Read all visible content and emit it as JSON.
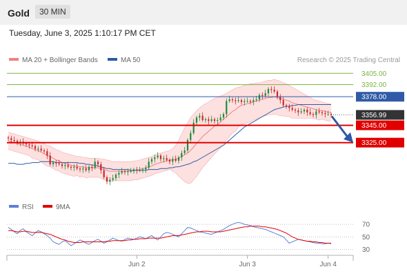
{
  "header": {
    "asset": "Gold",
    "timeframe": "30 MIN",
    "datetime": "Tuesday, June 3, 2025 1:10:17 PM CET"
  },
  "legend": {
    "ma20_label": "MA 20 + Bollinger Bands",
    "ma50_label": "MA 50",
    "attribution": "Research © 2025 Trading Central",
    "rsi_label": "RSI",
    "rsi_ma_label": "9MA"
  },
  "colors": {
    "ma20": "#f08080",
    "bands_fill": "#fcd6d6",
    "ma50": "#2e5aa6",
    "up_candle": "#1f8a3a",
    "down_candle": "#c62828",
    "resistance": "#7cb342",
    "pivot": "#2e5aa6",
    "support": "#e00000",
    "current_price_tag": "#333333",
    "arrow": "#2e5aa6",
    "rsi": "#5b7fd6",
    "rsi_ma": "#e00000"
  },
  "chart_data": [
    {
      "type": "candlestick",
      "title": "Gold",
      "ylim": [
        3265,
        3410
      ],
      "x_tick_labels": [
        "Jun 2",
        "Jun 3",
        "Jun 4"
      ],
      "price_levels": [
        {
          "label": "3405.00",
          "value": 3405.0,
          "role": "resistance"
        },
        {
          "label": "3392.00",
          "value": 3392.0,
          "role": "resistance"
        },
        {
          "label": "3378.00",
          "value": 3378.0,
          "role": "pivot"
        },
        {
          "label": "3345.00",
          "value": 3345.0,
          "role": "support"
        },
        {
          "label": "3325.00",
          "value": 3325.0,
          "role": "support"
        }
      ],
      "current_price": {
        "label": "3356.99",
        "value": 3356.99
      },
      "forecast_arrow": {
        "from": 3356.99,
        "to": 3325.0,
        "direction": "down"
      },
      "closes": [
        3330,
        3328,
        3327,
        3325,
        3326,
        3324,
        3323,
        3322,
        3321,
        3318,
        3318,
        3316,
        3315,
        3310,
        3300,
        3302,
        3301,
        3300,
        3298,
        3299,
        3297,
        3296,
        3297,
        3295,
        3294,
        3295,
        3293,
        3297,
        3296,
        3303,
        3300,
        3293,
        3285,
        3280,
        3282,
        3284,
        3288,
        3290,
        3292,
        3291,
        3292,
        3292,
        3294,
        3293,
        3293,
        3294,
        3296,
        3303,
        3306,
        3308,
        3310,
        3306,
        3307,
        3305,
        3303,
        3306,
        3304,
        3308,
        3313,
        3316,
        3328,
        3336,
        3348,
        3354,
        3356,
        3351,
        3352,
        3350,
        3352,
        3350,
        3351,
        3354,
        3358,
        3373,
        3375,
        3374,
        3373,
        3374,
        3372,
        3373,
        3373,
        3372,
        3374,
        3375,
        3380,
        3379,
        3382,
        3387,
        3386,
        3384,
        3378,
        3374,
        3368,
        3367,
        3365,
        3363,
        3362,
        3360,
        3361,
        3363,
        3360,
        3358,
        3357,
        3361,
        3360,
        3359,
        3358,
        3358,
        3357
      ],
      "ma20": [
        3327,
        3326,
        3325,
        3324,
        3323,
        3322,
        3321,
        3320,
        3318,
        3317,
        3316,
        3314,
        3312,
        3310,
        3309,
        3307,
        3305,
        3304,
        3302,
        3301,
        3300,
        3299,
        3298,
        3298,
        3297,
        3297,
        3296,
        3296,
        3296,
        3296,
        3296,
        3295,
        3294,
        3293,
        3292,
        3292,
        3292,
        3292,
        3292,
        3292,
        3292,
        3292,
        3293,
        3293,
        3294,
        3295,
        3296,
        3297,
        3298,
        3300,
        3301,
        3302,
        3303,
        3304,
        3305,
        3305,
        3306,
        3307,
        3309,
        3311,
        3313,
        3316,
        3320,
        3324,
        3328,
        3332,
        3335,
        3338,
        3341,
        3344,
        3346,
        3349,
        3352,
        3355,
        3358,
        3361,
        3363,
        3366,
        3368,
        3369,
        3370,
        3371,
        3372,
        3373,
        3374,
        3375,
        3376,
        3377,
        3377,
        3378,
        3377,
        3376,
        3375,
        3374,
        3373,
        3371,
        3370,
        3369,
        3368,
        3367,
        3366,
        3365,
        3364,
        3363,
        3362,
        3362,
        3361,
        3360,
        3360
      ],
      "bb_upper": [
        3337,
        3336,
        3335,
        3334,
        3333,
        3332,
        3331,
        3330,
        3329,
        3328,
        3327,
        3325,
        3324,
        3322,
        3321,
        3319,
        3317,
        3316,
        3314,
        3313,
        3312,
        3311,
        3310,
        3309,
        3309,
        3308,
        3308,
        3307,
        3307,
        3307,
        3307,
        3306,
        3306,
        3305,
        3304,
        3303,
        3303,
        3303,
        3303,
        3303,
        3303,
        3303,
        3304,
        3304,
        3305,
        3306,
        3307,
        3308,
        3309,
        3311,
        3312,
        3313,
        3314,
        3315,
        3316,
        3318,
        3322,
        3328,
        3335,
        3342,
        3348,
        3354,
        3358,
        3362,
        3365,
        3368,
        3370,
        3372,
        3374,
        3376,
        3377,
        3379,
        3380,
        3382,
        3384,
        3386,
        3388,
        3389,
        3390,
        3391,
        3392,
        3393,
        3393,
        3394,
        3394,
        3395,
        3396,
        3397,
        3397,
        3398,
        3397,
        3396,
        3394,
        3393,
        3391,
        3389,
        3387,
        3385,
        3383,
        3381,
        3379,
        3377,
        3375,
        3374,
        3373,
        3372,
        3371,
        3370,
        3370
      ],
      "bb_lower": [
        3317,
        3316,
        3315,
        3314,
        3313,
        3312,
        3311,
        3310,
        3307,
        3306,
        3305,
        3303,
        3300,
        3298,
        3297,
        3295,
        3293,
        3292,
        3290,
        3289,
        3288,
        3287,
        3286,
        3287,
        3285,
        3286,
        3284,
        3285,
        3285,
        3285,
        3285,
        3284,
        3282,
        3281,
        3280,
        3281,
        3281,
        3281,
        3281,
        3281,
        3281,
        3281,
        3282,
        3282,
        3283,
        3284,
        3285,
        3286,
        3287,
        3289,
        3290,
        3291,
        3292,
        3293,
        3294,
        3292,
        3290,
        3286,
        3283,
        3280,
        3278,
        3278,
        3282,
        3286,
        3291,
        3296,
        3300,
        3304,
        3308,
        3312,
        3315,
        3319,
        3324,
        3328,
        3332,
        3336,
        3338,
        3343,
        3346,
        3347,
        3348,
        3349,
        3351,
        3352,
        3354,
        3355,
        3356,
        3357,
        3357,
        3358,
        3357,
        3356,
        3356,
        3355,
        3355,
        3353,
        3353,
        3353,
        3353,
        3353,
        3353,
        3353,
        3353,
        3352,
        3351,
        3352,
        3351,
        3350,
        3350
      ],
      "ma50": [
        3301,
        3301,
        3301,
        3300,
        3300,
        3300,
        3301,
        3301,
        3302,
        3302,
        3302,
        3303,
        3303,
        3303,
        3303,
        3303,
        3302,
        3302,
        3302,
        3302,
        3302,
        3302,
        3302,
        3302,
        3301,
        3301,
        3300,
        3300,
        3299,
        3299,
        3298,
        3297,
        3296,
        3295,
        3295,
        3294,
        3294,
        3294,
        3294,
        3294,
        3294,
        3293,
        3293,
        3293,
        3293,
        3293,
        3293,
        3294,
        3294,
        3294,
        3294,
        3295,
        3295,
        3295,
        3296,
        3296,
        3297,
        3297,
        3298,
        3299,
        3300,
        3301,
        3303,
        3304,
        3306,
        3308,
        3310,
        3312,
        3314,
        3316,
        3318,
        3320,
        3322,
        3325,
        3328,
        3331,
        3334,
        3337,
        3340,
        3343,
        3345,
        3347,
        3349,
        3351,
        3353,
        3355,
        3357,
        3359,
        3361,
        3363,
        3364,
        3365,
        3366,
        3367,
        3367,
        3368,
        3368,
        3369,
        3369,
        3369,
        3369,
        3369,
        3369,
        3369,
        3369,
        3369,
        3369,
        3369,
        3369
      ]
    },
    {
      "type": "line",
      "title": "RSI",
      "ylim": [
        25,
        80
      ],
      "y_tick_labels": [
        "70",
        "50",
        "30"
      ],
      "series": [
        {
          "name": "RSI",
          "values": [
            65,
            62,
            58,
            55,
            60,
            63,
            58,
            55,
            52,
            56,
            60,
            58,
            55,
            52,
            48,
            42,
            40,
            38,
            42,
            44,
            40,
            36,
            39,
            42,
            45,
            43,
            40,
            38,
            41,
            44,
            46,
            43,
            40,
            42,
            45,
            48,
            46,
            44,
            43,
            46,
            48,
            47,
            46,
            48,
            50,
            49,
            47,
            50,
            52,
            48,
            45,
            50,
            55,
            57,
            56,
            54,
            52,
            50,
            55,
            60,
            65,
            64,
            62,
            60,
            58,
            57,
            56,
            55,
            54,
            56,
            58,
            60,
            62,
            65,
            68,
            70,
            72,
            73,
            72,
            70,
            69,
            68,
            66,
            65,
            64,
            63,
            62,
            60,
            58,
            56,
            54,
            52,
            50,
            45,
            40,
            42,
            44,
            46,
            45,
            44,
            43,
            42,
            41,
            40,
            40,
            39,
            39,
            40,
            39
          ]
        },
        {
          "name": "9MA",
          "values": [
            60,
            60,
            59,
            58,
            58,
            59,
            59,
            58,
            57,
            57,
            57,
            57,
            56,
            55,
            54,
            52,
            50,
            48,
            46,
            45,
            43,
            42,
            41,
            41,
            41,
            42,
            42,
            42,
            42,
            42,
            42,
            42,
            42,
            43,
            43,
            44,
            44,
            44,
            44,
            44,
            45,
            45,
            46,
            46,
            47,
            47,
            47,
            48,
            48,
            48,
            48,
            48,
            49,
            50,
            51,
            52,
            52,
            52,
            53,
            54,
            55,
            56,
            57,
            58,
            58,
            59,
            59,
            59,
            58,
            58,
            58,
            58,
            59,
            60,
            61,
            62,
            63,
            64,
            65,
            66,
            66,
            67,
            67,
            67,
            67,
            66,
            66,
            65,
            64,
            63,
            62,
            60,
            58,
            56,
            53,
            50,
            48,
            46,
            45,
            44,
            43,
            43,
            42,
            42,
            41,
            41,
            40,
            40,
            40
          ]
        }
      ]
    }
  ]
}
